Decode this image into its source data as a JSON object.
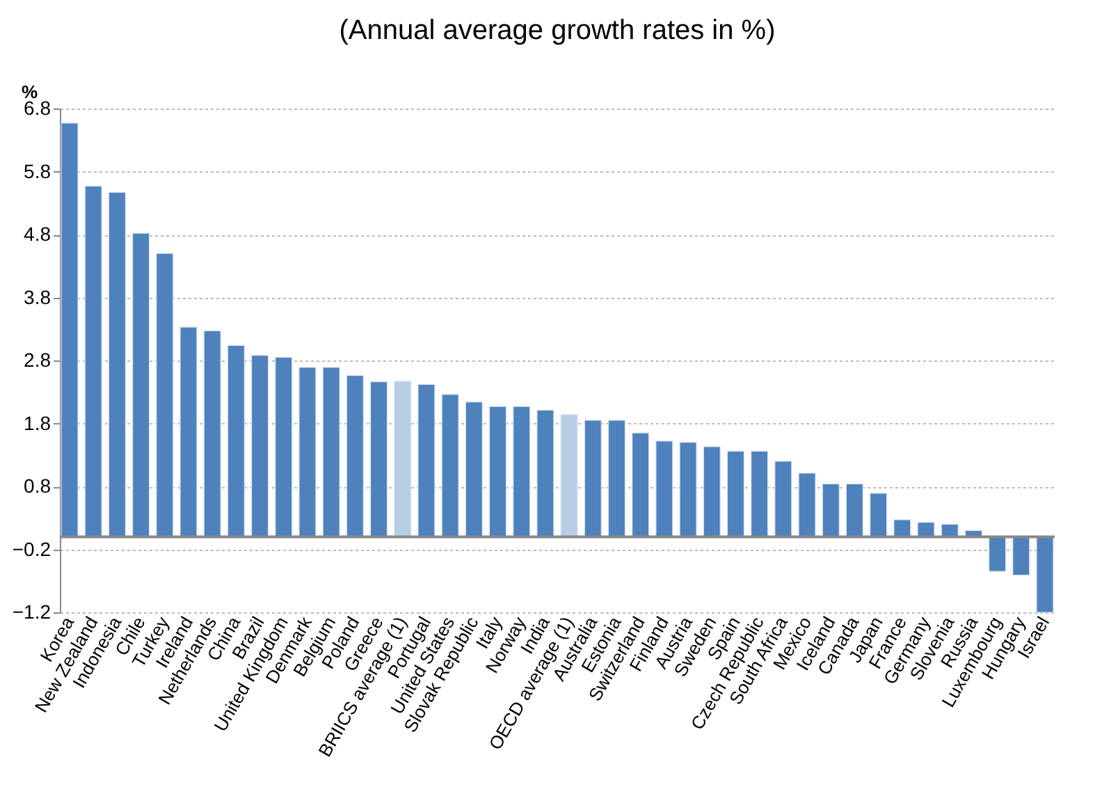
{
  "chart_data": {
    "type": "bar",
    "title": "(Annual average growth rates in %)",
    "ylabel": "%",
    "categories": [
      "Korea",
      "New Zealand",
      "Indonesia",
      "Chile",
      "Turkey",
      "Ireland",
      "Netherlands",
      "China",
      "Brazil",
      "United Kingdom",
      "Denmark",
      "Belgium",
      "Poland",
      "Greece",
      "BRIICS average (1)",
      "Portugal",
      "United States",
      "Slovak Republic",
      "Italy",
      "Norway",
      "India",
      "OECD average (1)",
      "Australia",
      "Estonia",
      "Switzerland",
      "Finland",
      "Austria",
      "Sweden",
      "Spain",
      "Czech Republic",
      "South Africa",
      "Mexico",
      "Iceland",
      "Canada",
      "Japan",
      "France",
      "Germany",
      "Slovenia",
      "Russia",
      "Luxembourg",
      "Hungary",
      "Israel"
    ],
    "values": [
      6.57,
      5.57,
      5.47,
      4.82,
      4.5,
      3.33,
      3.27,
      3.04,
      2.88,
      2.85,
      2.69,
      2.69,
      2.56,
      2.46,
      2.47,
      2.42,
      2.26,
      2.14,
      2.07,
      2.07,
      2.01,
      1.94,
      1.85,
      1.85,
      1.65,
      1.52,
      1.5,
      1.43,
      1.36,
      1.36,
      1.2,
      1.01,
      0.84,
      0.84,
      0.69,
      0.27,
      0.23,
      0.2,
      0.1,
      -0.55,
      -0.61,
      -1.2
    ],
    "colors": [
      "#4f81bd",
      "#4f81bd",
      "#4f81bd",
      "#4f81bd",
      "#4f81bd",
      "#4f81bd",
      "#4f81bd",
      "#4f81bd",
      "#4f81bd",
      "#4f81bd",
      "#4f81bd",
      "#4f81bd",
      "#4f81bd",
      "#4f81bd",
      "#b9cde5",
      "#4f81bd",
      "#4f81bd",
      "#4f81bd",
      "#4f81bd",
      "#4f81bd",
      "#4f81bd",
      "#b9cde5",
      "#4f81bd",
      "#4f81bd",
      "#4f81bd",
      "#4f81bd",
      "#4f81bd",
      "#4f81bd",
      "#4f81bd",
      "#4f81bd",
      "#4f81bd",
      "#4f81bd",
      "#4f81bd",
      "#4f81bd",
      "#4f81bd",
      "#4f81bd",
      "#4f81bd",
      "#4f81bd",
      "#4f81bd",
      "#4f81bd",
      "#4f81bd",
      "#4f81bd"
    ],
    "ylim": [
      -1.2,
      6.8
    ],
    "yticks": [
      -1.2,
      -0.2,
      0.8,
      1.8,
      2.8,
      3.8,
      4.8,
      5.8,
      6.8
    ],
    "grid": "y"
  }
}
